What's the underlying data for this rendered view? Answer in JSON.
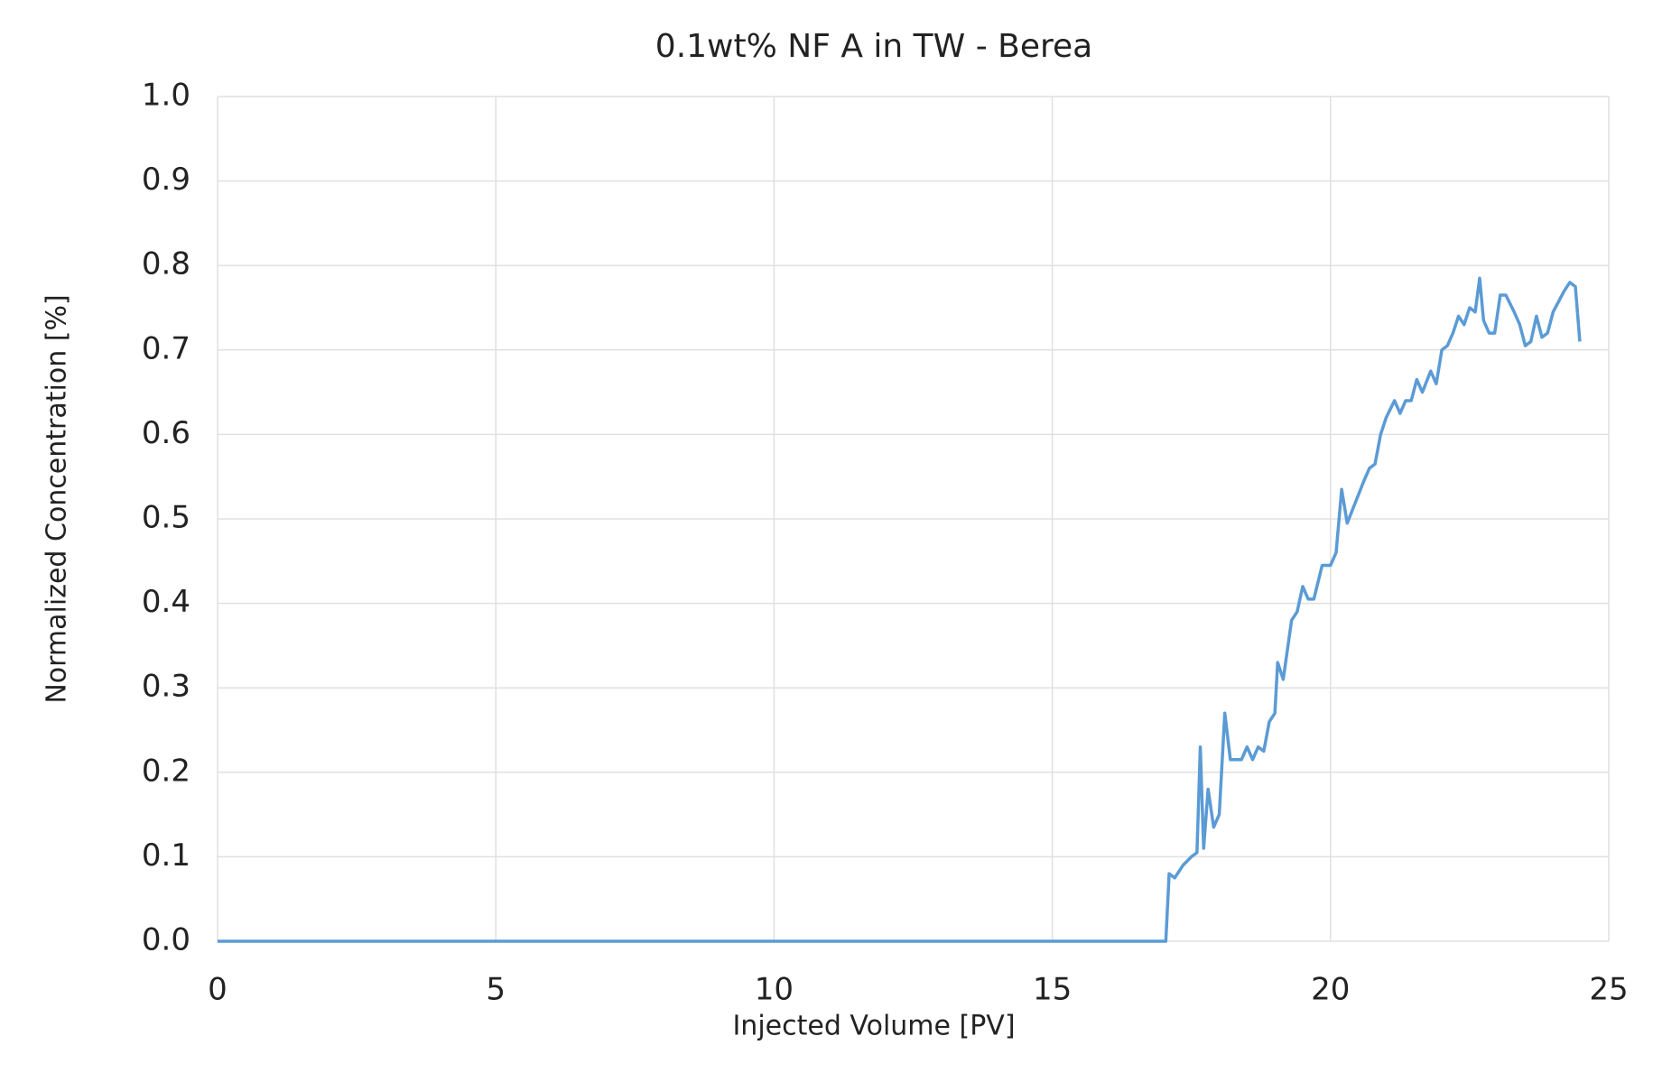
{
  "chart_data": {
    "type": "line",
    "title": "0.1wt% NF A in  TW - Berea",
    "x_label": "Injected Volume [PV]",
    "y_label": "Normalized Concentration [%]",
    "x": [
      0,
      17.04,
      17.1,
      17.2,
      17.35,
      17.5,
      17.6,
      17.66,
      17.72,
      17.8,
      17.9,
      18.0,
      18.1,
      18.2,
      18.4,
      18.5,
      18.6,
      18.7,
      18.8,
      18.9,
      19.0,
      19.05,
      19.15,
      19.3,
      19.4,
      19.5,
      19.6,
      19.7,
      19.85,
      20.0,
      20.1,
      20.2,
      20.3,
      20.45,
      20.6,
      20.7,
      20.8,
      20.9,
      21.0,
      21.15,
      21.25,
      21.35,
      21.45,
      21.55,
      21.65,
      21.8,
      21.9,
      22.0,
      22.1,
      22.2,
      22.3,
      22.4,
      22.5,
      22.6,
      22.68,
      22.75,
      22.85,
      22.95,
      23.05,
      23.15,
      23.3,
      23.4,
      23.5,
      23.6,
      23.7,
      23.8,
      23.9,
      24.0,
      24.2,
      24.3,
      24.4,
      24.48
    ],
    "values": [
      0,
      0,
      0.08,
      0.075,
      0.09,
      0.1,
      0.105,
      0.23,
      0.11,
      0.18,
      0.135,
      0.15,
      0.27,
      0.215,
      0.215,
      0.23,
      0.215,
      0.23,
      0.225,
      0.26,
      0.27,
      0.33,
      0.31,
      0.38,
      0.39,
      0.42,
      0.405,
      0.405,
      0.445,
      0.445,
      0.46,
      0.535,
      0.495,
      0.52,
      0.545,
      0.56,
      0.565,
      0.6,
      0.62,
      0.64,
      0.625,
      0.64,
      0.64,
      0.665,
      0.65,
      0.675,
      0.66,
      0.7,
      0.705,
      0.72,
      0.74,
      0.73,
      0.75,
      0.745,
      0.785,
      0.735,
      0.72,
      0.72,
      0.765,
      0.765,
      0.745,
      0.73,
      0.705,
      0.71,
      0.74,
      0.715,
      0.72,
      0.745,
      0.77,
      0.78,
      0.775,
      0.71
    ],
    "color": "#5b9bd5",
    "xlim": [
      0,
      25
    ],
    "xticks": [
      0,
      5,
      10,
      15,
      20,
      25
    ],
    "ylim": [
      0,
      1
    ],
    "yticks": [
      {
        "value": 0,
        "label": "0.0"
      },
      0.1,
      0.2,
      0.3,
      0.4,
      0.5,
      0.6,
      0.7,
      0.8,
      0.9,
      {
        "value": 1,
        "label": "1.0"
      }
    ],
    "grid": true
  }
}
